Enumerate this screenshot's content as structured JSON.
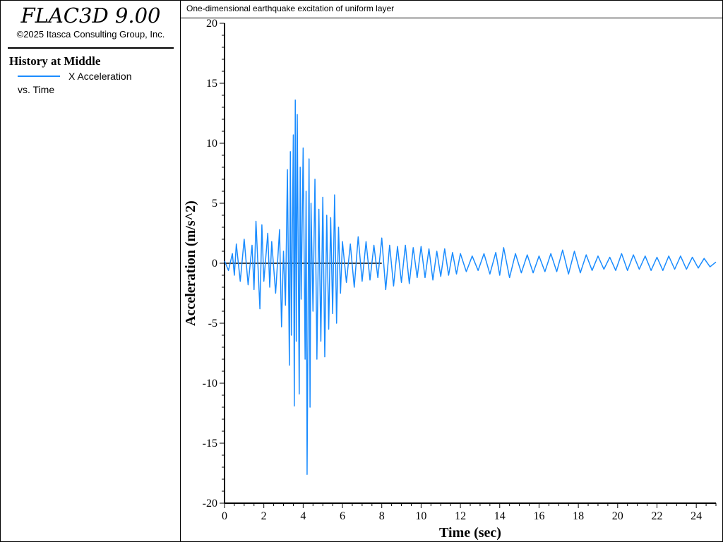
{
  "app": {
    "title": "FLAC3D 9.00",
    "copyright": "©2025 Itasca Consulting Group, Inc."
  },
  "legend": {
    "heading": "History at Middle",
    "series_label": "X Acceleration",
    "sub_label": "vs. Time",
    "line_color": "#1a8cff"
  },
  "plot": {
    "title": "One-dimensional earthquake excitation of uniform layer"
  },
  "chart_data": {
    "type": "line",
    "xlabel": "Time (sec)",
    "ylabel": "Acceleration (m/s^2)",
    "xlim": [
      0,
      25
    ],
    "ylim": [
      -20,
      20
    ],
    "x_ticks": [
      0,
      2,
      4,
      6,
      8,
      10,
      12,
      14,
      16,
      18,
      20,
      22,
      24
    ],
    "y_ticks": [
      20,
      15,
      10,
      5,
      0,
      -5,
      -10,
      -15,
      -20
    ],
    "grid": false,
    "series": [
      {
        "name": "X Acceleration",
        "color": "#1a8cff",
        "x": [
          0,
          0.2,
          0.4,
          0.5,
          0.6,
          0.8,
          1.0,
          1.2,
          1.4,
          1.5,
          1.6,
          1.8,
          1.9,
          2.0,
          2.2,
          2.3,
          2.4,
          2.6,
          2.8,
          2.9,
          3.0,
          3.1,
          3.2,
          3.3,
          3.35,
          3.4,
          3.5,
          3.55,
          3.6,
          3.65,
          3.7,
          3.8,
          3.85,
          3.9,
          4.0,
          4.1,
          4.15,
          4.2,
          4.3,
          4.35,
          4.4,
          4.5,
          4.6,
          4.7,
          4.8,
          4.9,
          5.0,
          5.1,
          5.2,
          5.3,
          5.4,
          5.5,
          5.6,
          5.7,
          5.8,
          5.9,
          6.0,
          6.2,
          6.4,
          6.6,
          6.8,
          7.0,
          7.2,
          7.4,
          7.6,
          7.8,
          8.0,
          8.2,
          8.4,
          8.6,
          8.8,
          9.0,
          9.2,
          9.4,
          9.6,
          9.8,
          10.0,
          10.2,
          10.4,
          10.6,
          10.8,
          11.0,
          11.2,
          11.4,
          11.6,
          11.8,
          12.0,
          12.3,
          12.6,
          12.9,
          13.2,
          13.5,
          13.8,
          14.0,
          14.2,
          14.5,
          14.8,
          15.1,
          15.4,
          15.7,
          16.0,
          16.3,
          16.6,
          16.9,
          17.2,
          17.5,
          17.8,
          18.1,
          18.4,
          18.7,
          19.0,
          19.3,
          19.6,
          19.9,
          20.2,
          20.5,
          20.8,
          21.1,
          21.4,
          21.7,
          22.0,
          22.3,
          22.6,
          22.9,
          23.2,
          23.5,
          23.8,
          24.1,
          24.4,
          24.7,
          25.0
        ],
        "y": [
          0.2,
          -0.6,
          0.8,
          -1.0,
          1.6,
          -1.5,
          2.0,
          -1.8,
          1.5,
          -2.2,
          3.5,
          -3.8,
          3.2,
          -1.5,
          2.5,
          -2.0,
          1.8,
          -2.5,
          2.8,
          -5.3,
          1.0,
          -3.5,
          7.8,
          -8.5,
          9.3,
          -6.0,
          10.7,
          -11.9,
          13.6,
          -6.5,
          12.4,
          -10.9,
          8.0,
          -3.0,
          9.6,
          -8.0,
          6.0,
          -17.6,
          8.7,
          -12.0,
          5.0,
          -4.0,
          7.0,
          -8.0,
          4.5,
          -6.5,
          5.5,
          -7.8,
          4.0,
          -5.5,
          3.8,
          -4.2,
          5.7,
          -5.0,
          3.0,
          -2.5,
          1.8,
          -1.6,
          1.6,
          -2.0,
          2.2,
          -1.5,
          1.8,
          -1.4,
          1.5,
          -1.2,
          2.1,
          -2.2,
          1.5,
          -1.9,
          1.4,
          -1.6,
          1.5,
          -1.7,
          1.3,
          -1.2,
          1.4,
          -1.2,
          1.2,
          -1.4,
          1.0,
          -1.1,
          1.2,
          -1.0,
          0.9,
          -0.9,
          0.8,
          -0.7,
          0.6,
          -0.6,
          0.8,
          -0.9,
          0.9,
          -1.0,
          1.3,
          -1.2,
          0.8,
          -0.8,
          0.7,
          -0.8,
          0.6,
          -0.7,
          0.8,
          -0.7,
          1.1,
          -0.9,
          1.0,
          -0.8,
          0.7,
          -0.6,
          0.6,
          -0.5,
          0.5,
          -0.6,
          0.8,
          -0.6,
          0.7,
          -0.5,
          0.6,
          -0.6,
          0.5,
          -0.6,
          0.6,
          -0.5,
          0.6,
          -0.5,
          0.5,
          -0.4,
          0.4,
          -0.3,
          0.1
        ]
      }
    ]
  }
}
